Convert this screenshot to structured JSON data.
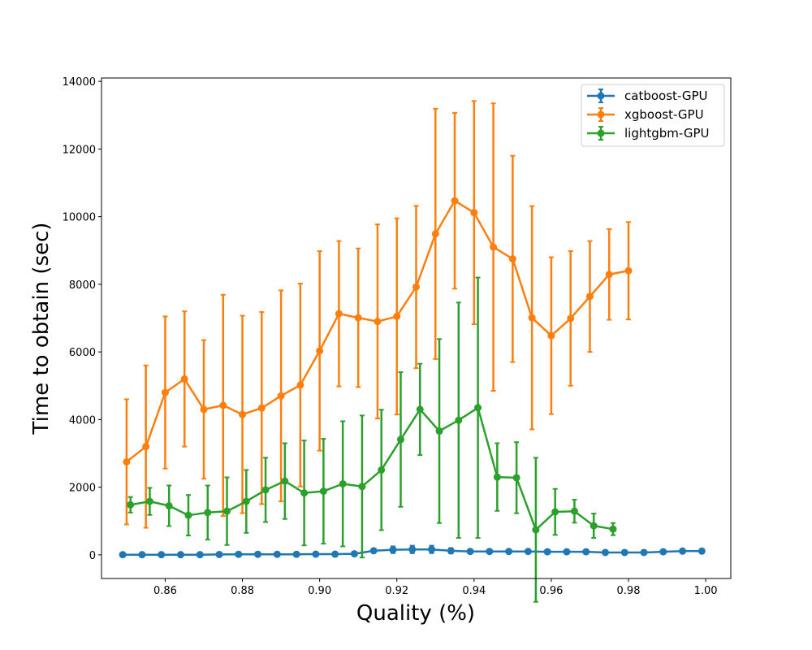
{
  "chart_data": {
    "type": "line",
    "title": "",
    "xlabel": "Quality (%)",
    "ylabel": "Time to obtain (sec)",
    "xlim": [
      0.8435,
      1.0065
    ],
    "ylim": [
      -700,
      14100
    ],
    "xticks": [
      0.86,
      0.88,
      0.9,
      0.92,
      0.94,
      0.96,
      0.98,
      1.0
    ],
    "xtick_labels": [
      "0.86",
      "0.88",
      "0.90",
      "0.92",
      "0.94",
      "0.96",
      "0.98",
      "1.00"
    ],
    "yticks": [
      0,
      2000,
      4000,
      6000,
      8000,
      10000,
      12000,
      14000
    ],
    "ytick_labels": [
      "0",
      "2000",
      "4000",
      "6000",
      "8000",
      "10000",
      "12000",
      "14000"
    ],
    "grid": false,
    "legend_position": "top-right",
    "series": [
      {
        "name": "catboost-GPU",
        "color": "#1f77b4",
        "x": [
          0.849,
          0.854,
          0.859,
          0.864,
          0.869,
          0.874,
          0.879,
          0.884,
          0.889,
          0.894,
          0.899,
          0.904,
          0.909,
          0.914,
          0.919,
          0.924,
          0.929,
          0.934,
          0.939,
          0.944,
          0.949,
          0.954,
          0.959,
          0.964,
          0.969,
          0.974,
          0.979,
          0.984,
          0.989,
          0.994,
          0.999
        ],
        "y": [
          5,
          5,
          5,
          5,
          5,
          10,
          15,
          15,
          15,
          15,
          20,
          20,
          30,
          120,
          150,
          160,
          160,
          120,
          100,
          100,
          100,
          100,
          90,
          90,
          90,
          70,
          70,
          70,
          90,
          110,
          110
        ],
        "err": [
          20,
          20,
          20,
          20,
          20,
          20,
          20,
          20,
          20,
          20,
          20,
          20,
          20,
          60,
          100,
          110,
          110,
          80,
          30,
          30,
          30,
          30,
          30,
          30,
          30,
          30,
          30,
          30,
          30,
          30,
          30
        ]
      },
      {
        "name": "xgboost-GPU",
        "color": "#ff7f0e",
        "x": [
          0.85,
          0.855,
          0.86,
          0.865,
          0.87,
          0.875,
          0.88,
          0.885,
          0.89,
          0.895,
          0.9,
          0.905,
          0.91,
          0.915,
          0.92,
          0.925,
          0.93,
          0.935,
          0.94,
          0.945,
          0.95,
          0.955,
          0.96,
          0.965,
          0.97,
          0.975,
          0.98
        ],
        "y": [
          2750,
          3200,
          4800,
          5200,
          4300,
          4420,
          4150,
          4340,
          4700,
          5020,
          6030,
          7130,
          7010,
          6900,
          7050,
          7920,
          9490,
          10470,
          10120,
          9100,
          8750,
          7010,
          6480,
          6990,
          7640,
          8290,
          8400
        ],
        "err": [
          1850,
          2400,
          2250,
          2000,
          2050,
          3270,
          2920,
          2840,
          3120,
          3000,
          2950,
          2150,
          2050,
          2870,
          2900,
          2400,
          3700,
          2600,
          3300,
          4250,
          3050,
          3300,
          2320,
          1990,
          1640,
          1340,
          1440
        ]
      },
      {
        "name": "lightgbm-GPU",
        "color": "#2ca02c",
        "x": [
          0.851,
          0.856,
          0.861,
          0.866,
          0.871,
          0.876,
          0.881,
          0.886,
          0.891,
          0.896,
          0.901,
          0.906,
          0.911,
          0.916,
          0.921,
          0.926,
          0.931,
          0.936,
          0.941,
          0.946,
          0.951,
          0.956,
          0.961,
          0.966,
          0.971,
          0.976
        ],
        "y": [
          1480,
          1580,
          1450,
          1170,
          1250,
          1290,
          1580,
          1920,
          2180,
          1830,
          1880,
          2100,
          2020,
          2510,
          3410,
          4300,
          3660,
          3980,
          4350,
          2300,
          2280,
          740,
          1270,
          1290,
          860,
          760
        ],
        "err": [
          230,
          400,
          600,
          600,
          800,
          1000,
          930,
          950,
          1120,
          1550,
          1550,
          1850,
          2100,
          1780,
          1990,
          1350,
          2720,
          3480,
          3850,
          1000,
          1050,
          2130,
          680,
          340,
          360,
          180
        ]
      }
    ]
  }
}
